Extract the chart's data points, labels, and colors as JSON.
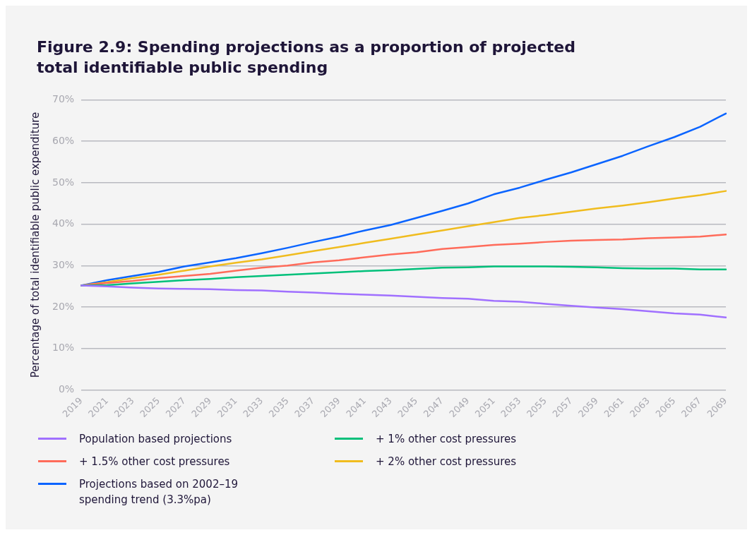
{
  "chart_data": {
    "type": "line",
    "title": "Figure 2.9: Spending projections as a proportion of projected total identifiable public spending",
    "ylabel": "Percentage of total identifiable public expenditure",
    "categories": [
      "2019",
      "2021",
      "2023",
      "2025",
      "2027",
      "2029",
      "2031",
      "2033",
      "2035",
      "2037",
      "2039",
      "2041",
      "2043",
      "2045",
      "2047",
      "2049",
      "2051",
      "2053",
      "2055",
      "2057",
      "2059",
      "2061",
      "2063",
      "2065",
      "2067",
      "2069"
    ],
    "series": [
      {
        "name": "Population based projections",
        "color": "#a070ff",
        "values": [
          25.2,
          25,
          24.7,
          24.5,
          24.4,
          24.3,
          24.1,
          24,
          23.7,
          23.5,
          23.2,
          23,
          22.8,
          22.5,
          22.2,
          22,
          21.5,
          21.3,
          20.8,
          20.3,
          19.9,
          19.5,
          19,
          18.5,
          18.2,
          17.5
        ]
      },
      {
        "name": "+ 1% other cost pressures",
        "color": "#00c07a",
        "values": [
          25.2,
          25.3,
          25.7,
          26.1,
          26.5,
          26.8,
          27.2,
          27.5,
          27.8,
          28.1,
          28.4,
          28.7,
          28.9,
          29.2,
          29.5,
          29.6,
          29.8,
          29.8,
          29.8,
          29.7,
          29.6,
          29.4,
          29.3,
          29.3,
          29.1,
          29.1
        ]
      },
      {
        "name": "+ 1.5% other cost pressures",
        "color": "#ff6b5a",
        "values": [
          25.2,
          25.8,
          26.3,
          27,
          27.5,
          28,
          28.8,
          29.5,
          30,
          30.8,
          31.3,
          32,
          32.7,
          33.2,
          34,
          34.5,
          35,
          35.3,
          35.7,
          36,
          36.2,
          36.3,
          36.6,
          36.8,
          37,
          37.5
        ]
      },
      {
        "name": "+ 2% other cost pressures",
        "color": "#f0bc1e",
        "values": [
          25.2,
          26,
          27,
          27.8,
          28.8,
          29.8,
          30.7,
          31.5,
          32.5,
          33.5,
          34.5,
          35.5,
          36.5,
          37.5,
          38.5,
          39.5,
          40.5,
          41.5,
          42.2,
          43,
          43.8,
          44.5,
          45.3,
          46.2,
          47,
          48
        ]
      },
      {
        "name": "Projections based on 2002–19 spending trend (3.3%pa)",
        "color": "#0a64ff",
        "values": [
          25.2,
          26.5,
          27.5,
          28.5,
          29.8,
          30.8,
          31.8,
          33,
          34.3,
          35.7,
          37,
          38.5,
          39.8,
          41.5,
          43.2,
          45,
          47.2,
          48.8,
          50.7,
          52.5,
          54.5,
          56.5,
          58.8,
          61,
          63.5,
          66.7
        ]
      }
    ],
    "ylim": [
      0,
      70
    ],
    "yticks": [
      {
        "value": 0,
        "label": "0%"
      },
      {
        "value": 10,
        "label": "10%"
      },
      {
        "value": 20,
        "label": "20%"
      },
      {
        "value": 30,
        "label": "30%"
      },
      {
        "value": 40,
        "label": "40%"
      },
      {
        "value": 50,
        "label": "50%"
      },
      {
        "value": 60,
        "label": "60%"
      },
      {
        "value": 70,
        "label": "70%"
      }
    ],
    "grid": "y",
    "legend": "bottom",
    "marker": "none",
    "line_style": "solid"
  }
}
